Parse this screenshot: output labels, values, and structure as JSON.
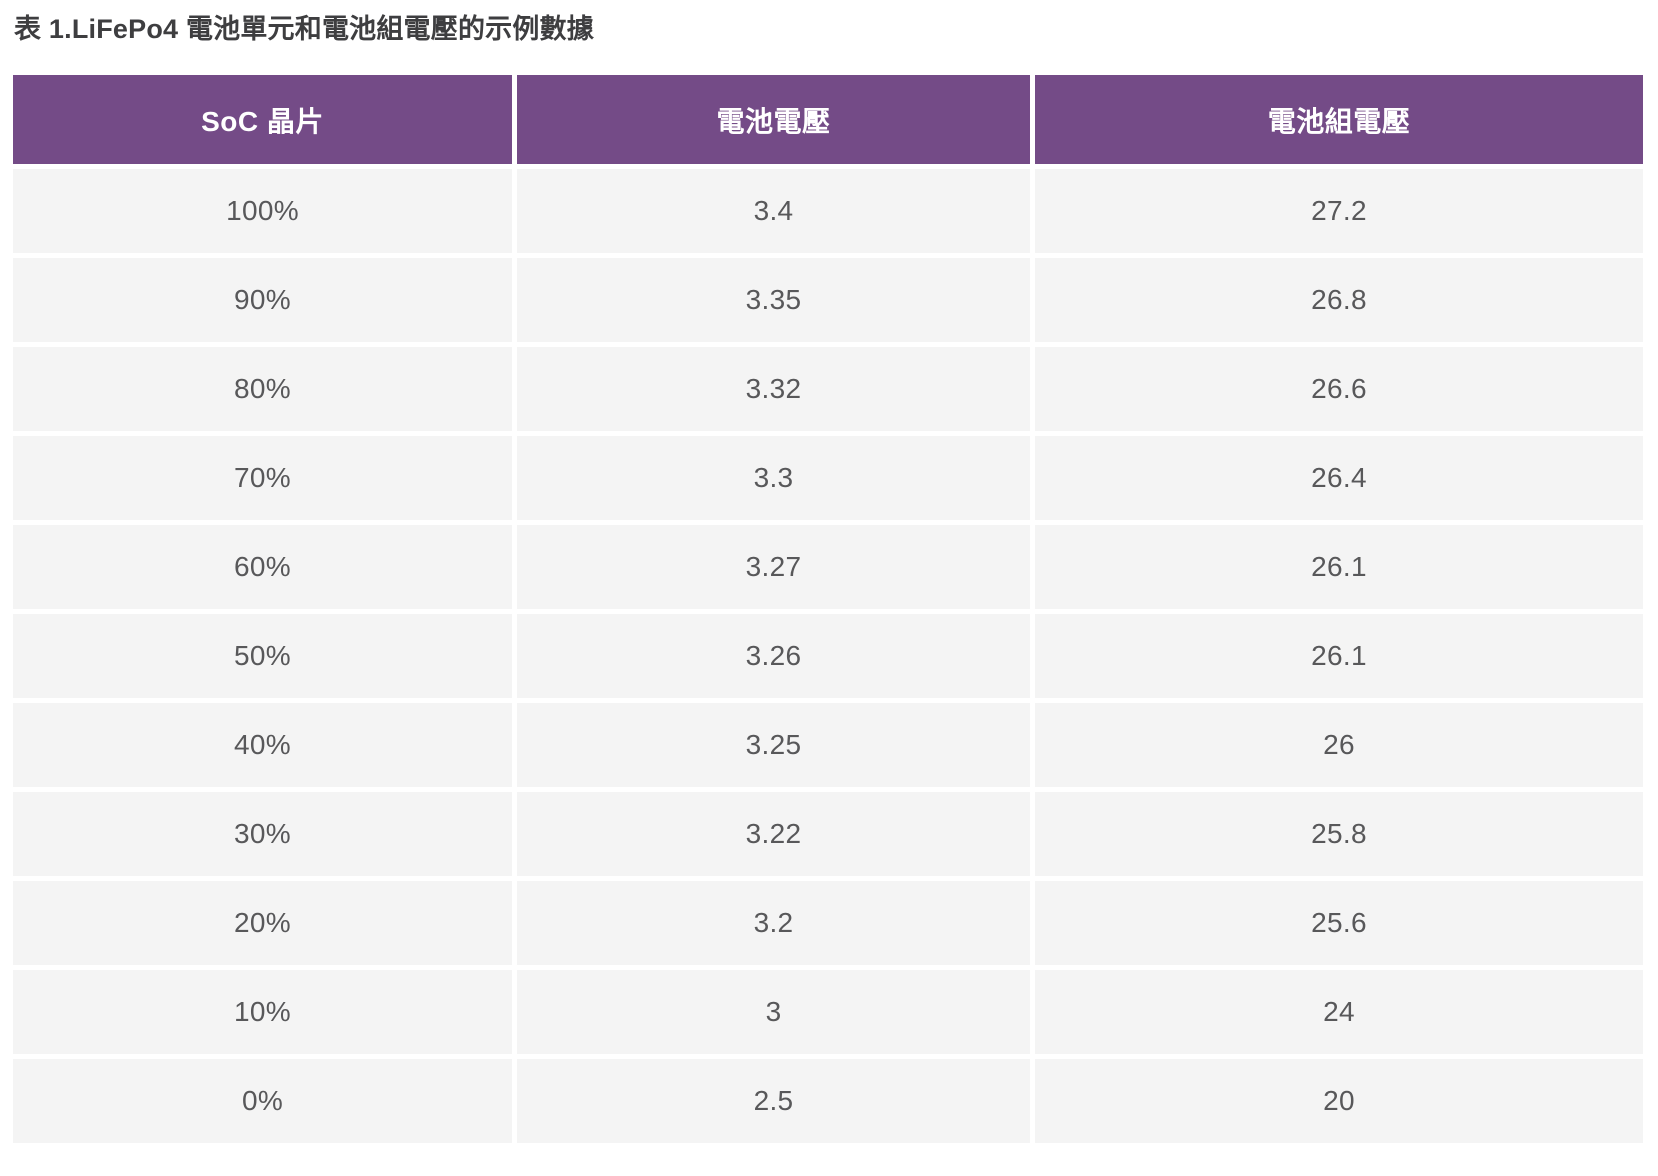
{
  "page": {
    "title": "表 1.LiFePo4 電池單元和電池組電壓的示例數據"
  },
  "table": {
    "headers": [
      "SoC 晶片",
      "電池電壓",
      "電池組電壓"
    ],
    "rows": [
      [
        "100%",
        "3.4",
        "27.2"
      ],
      [
        "90%",
        "3.35",
        "26.8"
      ],
      [
        "80%",
        "3.32",
        "26.6"
      ],
      [
        "70%",
        "3.3",
        "26.4"
      ],
      [
        "60%",
        "3.27",
        "26.1"
      ],
      [
        "50%",
        "3.26",
        "26.1"
      ],
      [
        "40%",
        "3.25",
        "26"
      ],
      [
        "30%",
        "3.22",
        "25.8"
      ],
      [
        "20%",
        "3.2",
        "25.6"
      ],
      [
        "10%",
        "3",
        "24"
      ],
      [
        "0%",
        "2.5",
        "20"
      ]
    ]
  },
  "chart_data": {
    "type": "table",
    "title": "表 1.LiFePo4 電池單元和電池組電壓的示例數據",
    "columns": [
      "SoC 晶片",
      "電池電壓",
      "電池組電壓"
    ],
    "soc_percent": [
      100,
      90,
      80,
      70,
      60,
      50,
      40,
      30,
      20,
      10,
      0
    ],
    "cell_voltage": [
      3.4,
      3.35,
      3.32,
      3.3,
      3.27,
      3.26,
      3.25,
      3.22,
      3.2,
      3,
      2.5
    ],
    "pack_voltage": [
      27.2,
      26.8,
      26.6,
      26.4,
      26.1,
      26.1,
      26,
      25.8,
      25.6,
      24,
      20
    ]
  },
  "colors": {
    "header_bg": "#744b87",
    "header_text": "#ffffff",
    "row_bg": "#f4f4f4",
    "cell_text": "#58585a",
    "title_text": "#3e3e40",
    "gutter": "#ffffff"
  }
}
